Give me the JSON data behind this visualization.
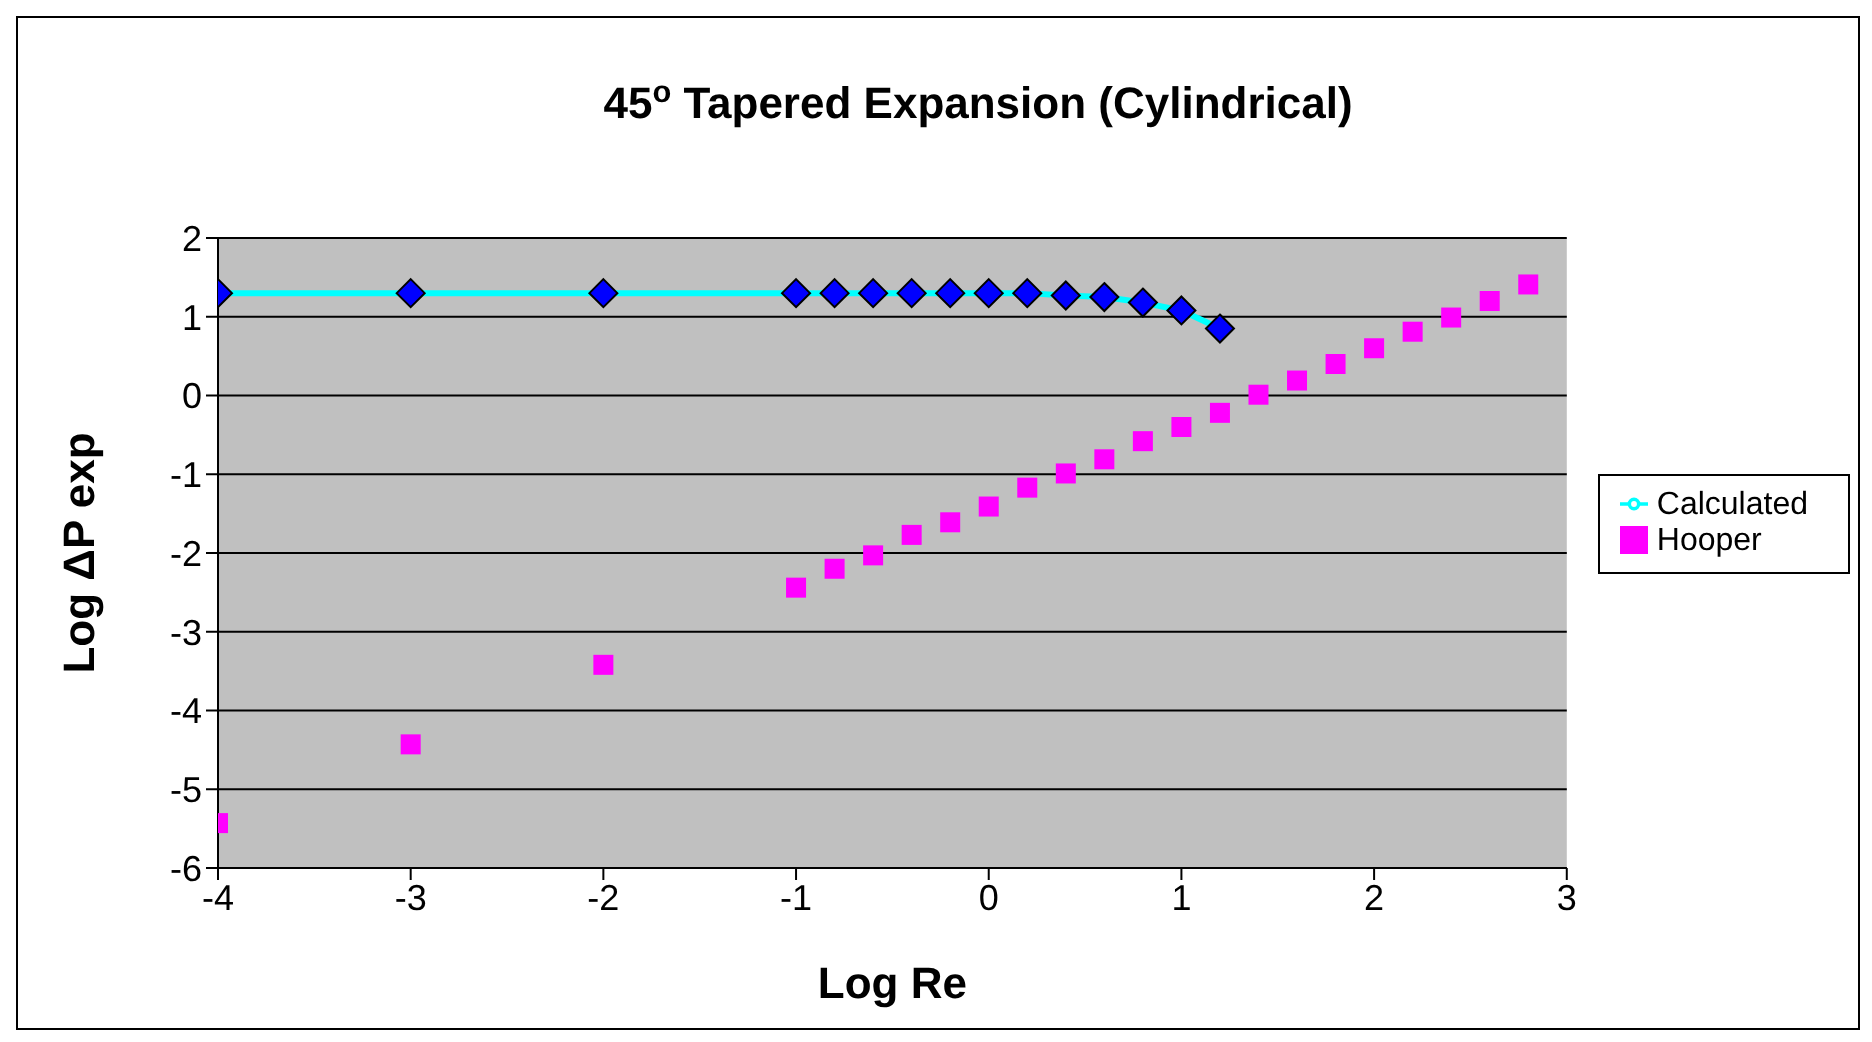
{
  "chart_data": {
    "type": "scatter",
    "title": "45$^{o}$ Tapered Expansion (Cylindrical)",
    "xlabel": "Log Re",
    "ylabel": "Log ΔP exp",
    "xlim": [
      -4,
      3
    ],
    "xticks": [
      -4,
      -3,
      -2,
      -1,
      0,
      1,
      2,
      3
    ],
    "ylim": [
      -6,
      2
    ],
    "yticks": [
      -6,
      -5,
      -4,
      -3,
      -2,
      -1,
      0,
      1,
      2
    ],
    "grid": "y",
    "legend": "right",
    "series": [
      {
        "name": "Calculated",
        "type": "line",
        "color": "#00ffff",
        "marker": "diamond",
        "line_style": "solid",
        "x": [
          -4,
          -3,
          -2,
          -1,
          -0.8,
          -0.6,
          -0.4,
          -0.2,
          0,
          0.2,
          0.4,
          0.6,
          0.8,
          1,
          1.2
        ],
        "values": [
          1.3,
          1.3,
          1.3,
          1.3,
          1.3,
          1.3,
          1.3,
          1.3,
          1.3,
          1.3,
          1.27,
          1.25,
          1.18,
          1.08,
          0.85
        ]
      },
      {
        "name": "Hooper",
        "color": "#ff00ff",
        "marker": "square",
        "x": [
          -4,
          -3,
          -2,
          -1,
          -0.8,
          -0.6,
          -0.4,
          -0.2,
          0,
          0.2,
          0.4,
          0.6,
          0.8,
          1,
          1.2,
          1.4,
          1.6,
          1.8,
          2,
          2.2,
          2.4,
          2.6,
          2.8
        ],
        "values": [
          -5.43,
          -4.43,
          -3.42,
          -2.44,
          -2.2,
          -2.03,
          -1.77,
          -1.61,
          -1.41,
          -1.17,
          -0.99,
          -0.81,
          -0.58,
          -0.4,
          -0.22,
          0.01,
          0.19,
          0.4,
          0.6,
          0.81,
          0.99,
          1.2,
          1.41
        ]
      }
    ]
  }
}
